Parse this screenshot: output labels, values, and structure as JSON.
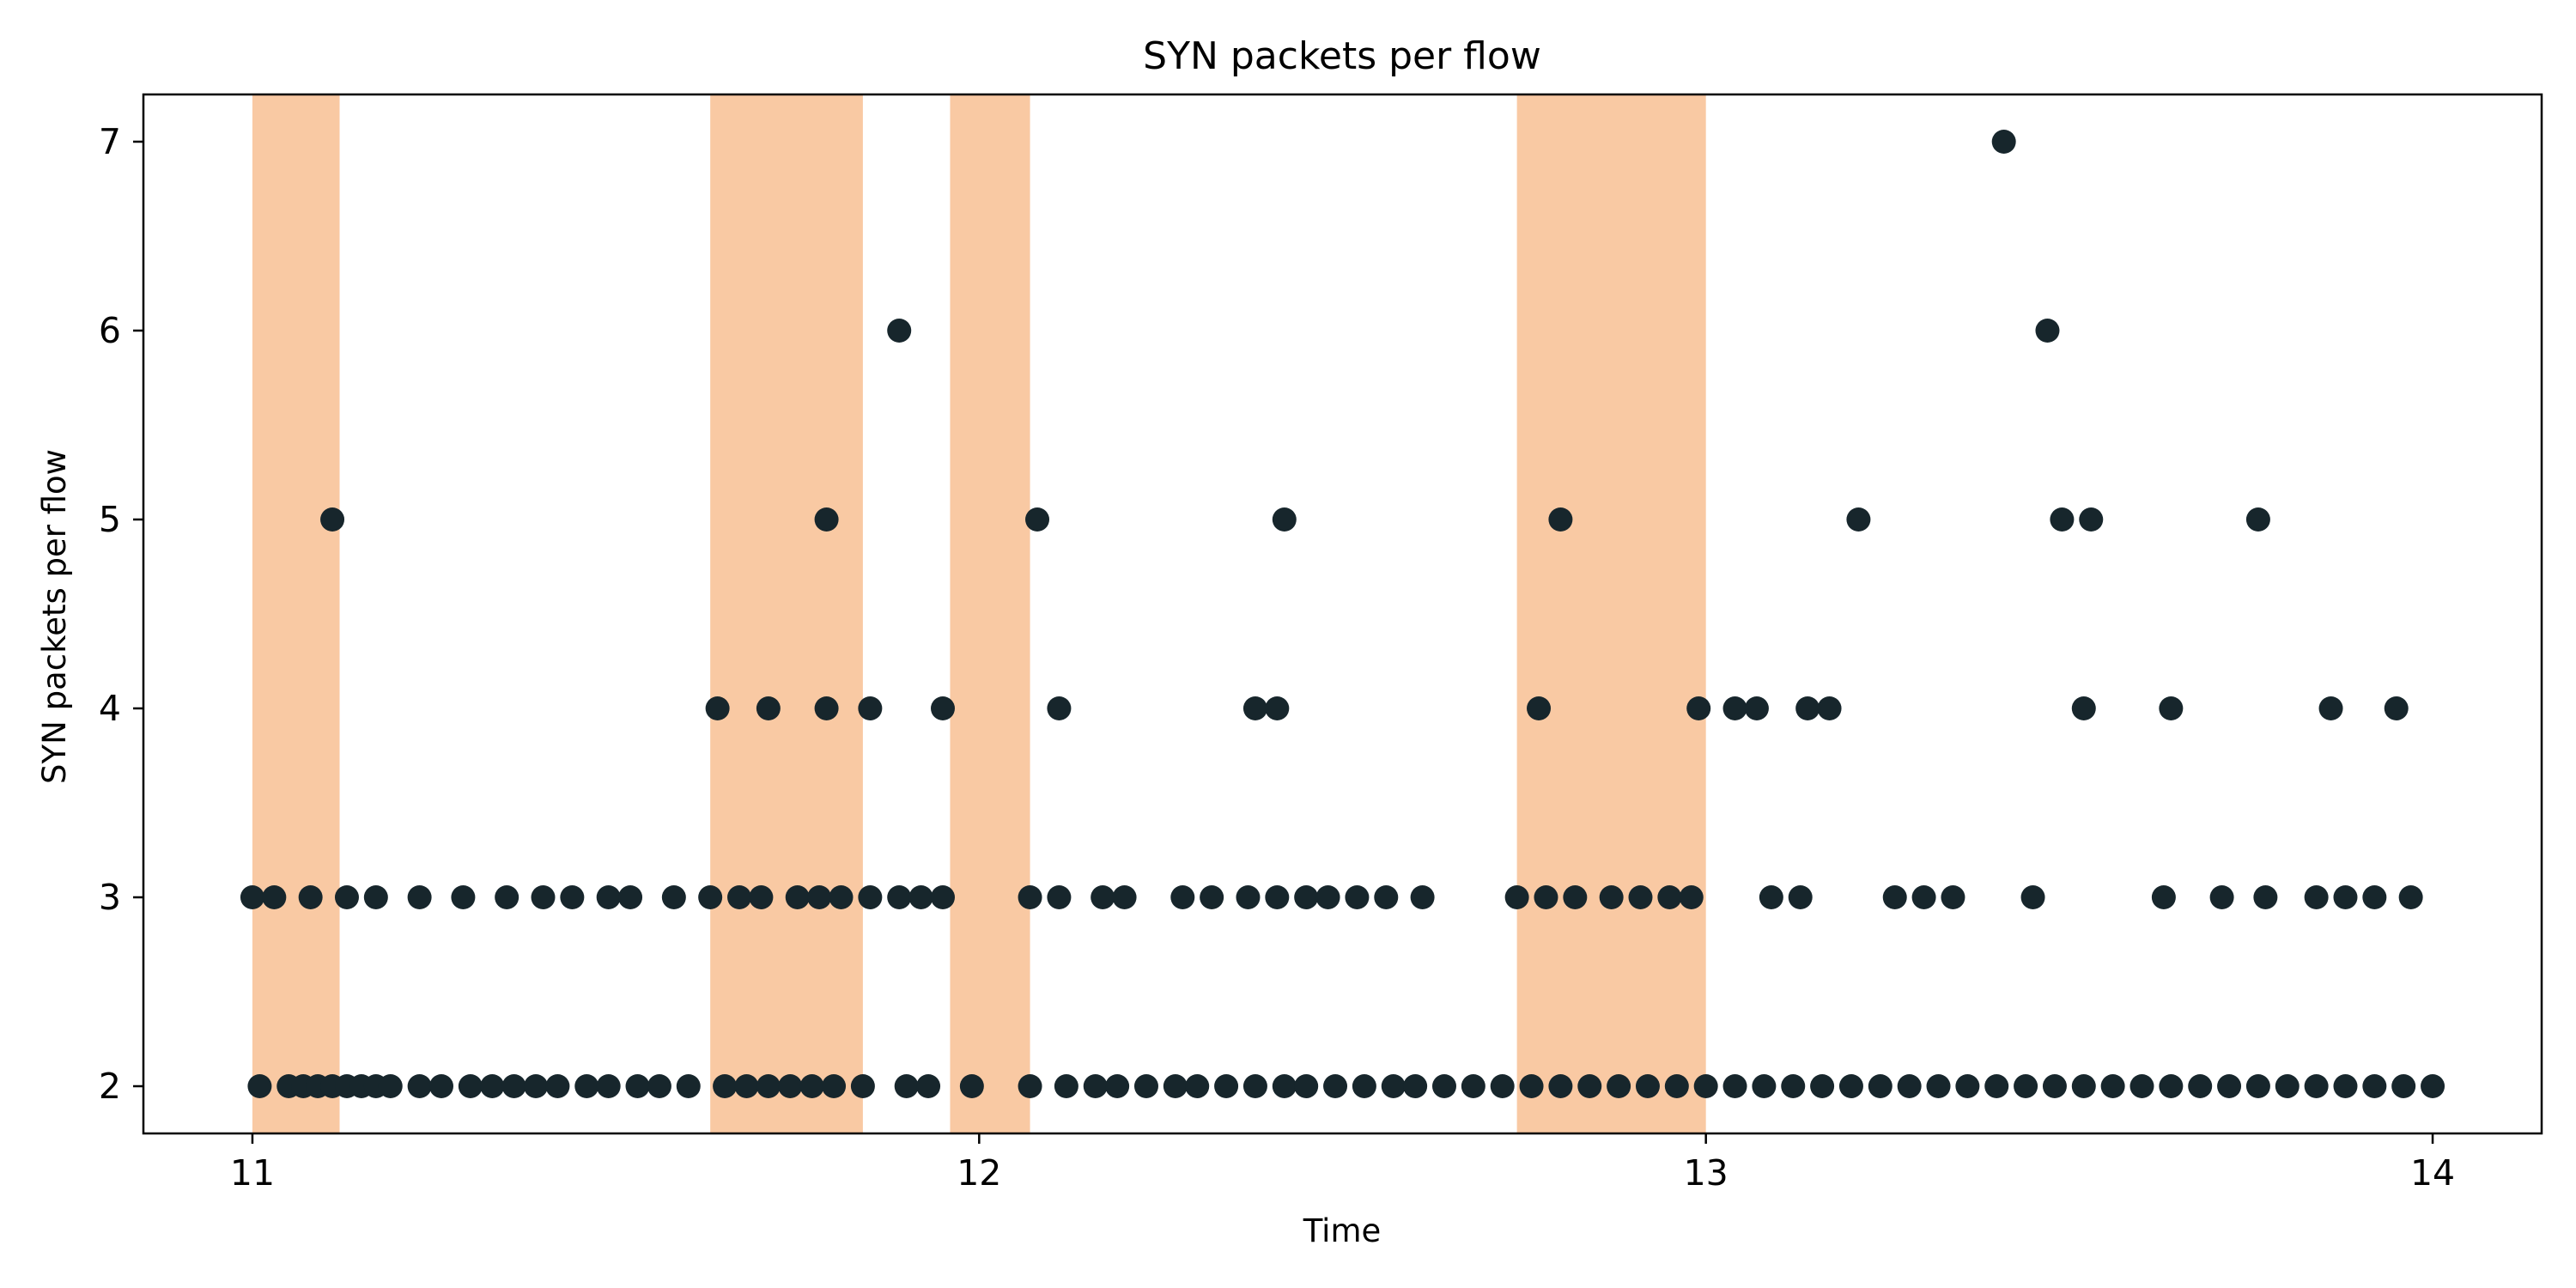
{
  "chart_data": {
    "type": "scatter",
    "title": "SYN packets per flow",
    "xlabel": "Time",
    "ylabel": "SYN packets per flow",
    "xlim": [
      10.85,
      14.15
    ],
    "ylim": [
      1.75,
      7.25
    ],
    "xticks": [
      11,
      12,
      13,
      14
    ],
    "yticks": [
      2,
      3,
      4,
      5,
      6,
      7
    ],
    "grid": false,
    "legend": "none",
    "colors": {
      "points": "#17262c",
      "bands": "#f9c9a3",
      "frame": "#000000"
    },
    "shaded_intervals": [
      [
        11.0,
        11.12
      ],
      [
        11.63,
        11.84
      ],
      [
        11.96,
        12.07
      ],
      [
        12.74,
        13.0
      ]
    ],
    "series": [
      {
        "values": [
          [
            11.01,
            2
          ],
          [
            11.05,
            2
          ],
          [
            11.07,
            2
          ],
          [
            11.09,
            2
          ],
          [
            11.11,
            2
          ],
          [
            11.13,
            2
          ],
          [
            11.15,
            2
          ],
          [
            11.17,
            2
          ],
          [
            11.19,
            2
          ],
          [
            11.23,
            2
          ],
          [
            11.26,
            2
          ],
          [
            11.3,
            2
          ],
          [
            11.33,
            2
          ],
          [
            11.36,
            2
          ],
          [
            11.39,
            2
          ],
          [
            11.42,
            2
          ],
          [
            11.46,
            2
          ],
          [
            11.49,
            2
          ],
          [
            11.53,
            2
          ],
          [
            11.56,
            2
          ],
          [
            11.6,
            2
          ],
          [
            11.65,
            2
          ],
          [
            11.68,
            2
          ],
          [
            11.71,
            2
          ],
          [
            11.74,
            2
          ],
          [
            11.77,
            2
          ],
          [
            11.8,
            2
          ],
          [
            11.84,
            2
          ],
          [
            11.9,
            2
          ],
          [
            11.93,
            2
          ],
          [
            11.99,
            2
          ],
          [
            12.07,
            2
          ],
          [
            12.12,
            2
          ],
          [
            12.16,
            2
          ],
          [
            12.19,
            2
          ],
          [
            12.23,
            2
          ],
          [
            12.27,
            2
          ],
          [
            12.3,
            2
          ],
          [
            12.34,
            2
          ],
          [
            12.38,
            2
          ],
          [
            12.42,
            2
          ],
          [
            12.45,
            2
          ],
          [
            12.49,
            2
          ],
          [
            12.53,
            2
          ],
          [
            12.57,
            2
          ],
          [
            12.6,
            2
          ],
          [
            12.64,
            2
          ],
          [
            12.68,
            2
          ],
          [
            12.72,
            2
          ],
          [
            12.76,
            2
          ],
          [
            12.8,
            2
          ],
          [
            12.84,
            2
          ],
          [
            12.88,
            2
          ],
          [
            12.92,
            2
          ],
          [
            12.96,
            2
          ],
          [
            13.0,
            2
          ],
          [
            13.04,
            2
          ],
          [
            13.08,
            2
          ],
          [
            13.12,
            2
          ],
          [
            13.16,
            2
          ],
          [
            13.2,
            2
          ],
          [
            13.24,
            2
          ],
          [
            13.28,
            2
          ],
          [
            13.32,
            2
          ],
          [
            13.36,
            2
          ],
          [
            13.4,
            2
          ],
          [
            13.44,
            2
          ],
          [
            13.48,
            2
          ],
          [
            13.52,
            2
          ],
          [
            13.56,
            2
          ],
          [
            13.6,
            2
          ],
          [
            13.64,
            2
          ],
          [
            13.68,
            2
          ],
          [
            13.72,
            2
          ],
          [
            13.76,
            2
          ],
          [
            13.8,
            2
          ],
          [
            13.84,
            2
          ],
          [
            13.88,
            2
          ],
          [
            13.92,
            2
          ],
          [
            13.96,
            2
          ],
          [
            14.0,
            2
          ],
          [
            11.0,
            3
          ],
          [
            11.03,
            3
          ],
          [
            11.08,
            3
          ],
          [
            11.13,
            3
          ],
          [
            11.17,
            3
          ],
          [
            11.23,
            3
          ],
          [
            11.29,
            3
          ],
          [
            11.35,
            3
          ],
          [
            11.4,
            3
          ],
          [
            11.44,
            3
          ],
          [
            11.49,
            3
          ],
          [
            11.52,
            3
          ],
          [
            11.58,
            3
          ],
          [
            11.63,
            3
          ],
          [
            11.67,
            3
          ],
          [
            11.7,
            3
          ],
          [
            11.75,
            3
          ],
          [
            11.78,
            3
          ],
          [
            11.81,
            3
          ],
          [
            11.85,
            3
          ],
          [
            11.89,
            3
          ],
          [
            11.92,
            3
          ],
          [
            11.95,
            3
          ],
          [
            12.07,
            3
          ],
          [
            12.11,
            3
          ],
          [
            12.17,
            3
          ],
          [
            12.2,
            3
          ],
          [
            12.28,
            3
          ],
          [
            12.32,
            3
          ],
          [
            12.37,
            3
          ],
          [
            12.41,
            3
          ],
          [
            12.45,
            3
          ],
          [
            12.48,
            3
          ],
          [
            12.52,
            3
          ],
          [
            12.56,
            3
          ],
          [
            12.61,
            3
          ],
          [
            12.74,
            3
          ],
          [
            12.78,
            3
          ],
          [
            12.82,
            3
          ],
          [
            12.87,
            3
          ],
          [
            12.91,
            3
          ],
          [
            12.95,
            3
          ],
          [
            12.98,
            3
          ],
          [
            13.09,
            3
          ],
          [
            13.13,
            3
          ],
          [
            13.26,
            3
          ],
          [
            13.3,
            3
          ],
          [
            13.34,
            3
          ],
          [
            13.45,
            3
          ],
          [
            13.63,
            3
          ],
          [
            13.71,
            3
          ],
          [
            13.77,
            3
          ],
          [
            13.84,
            3
          ],
          [
            13.88,
            3
          ],
          [
            13.92,
            3
          ],
          [
            13.97,
            3
          ],
          [
            11.64,
            4
          ],
          [
            11.71,
            4
          ],
          [
            11.79,
            4
          ],
          [
            11.85,
            4
          ],
          [
            11.95,
            4
          ],
          [
            12.11,
            4
          ],
          [
            12.38,
            4
          ],
          [
            12.41,
            4
          ],
          [
            12.77,
            4
          ],
          [
            12.99,
            4
          ],
          [
            13.04,
            4
          ],
          [
            13.07,
            4
          ],
          [
            13.14,
            4
          ],
          [
            13.17,
            4
          ],
          [
            13.52,
            4
          ],
          [
            13.64,
            4
          ],
          [
            13.86,
            4
          ],
          [
            13.95,
            4
          ],
          [
            11.11,
            5
          ],
          [
            11.79,
            5
          ],
          [
            12.08,
            5
          ],
          [
            12.42,
            5
          ],
          [
            12.8,
            5
          ],
          [
            13.21,
            5
          ],
          [
            13.49,
            5
          ],
          [
            13.53,
            5
          ],
          [
            13.76,
            5
          ],
          [
            11.89,
            6
          ],
          [
            13.47,
            6
          ],
          [
            13.41,
            7
          ]
        ]
      }
    ]
  }
}
